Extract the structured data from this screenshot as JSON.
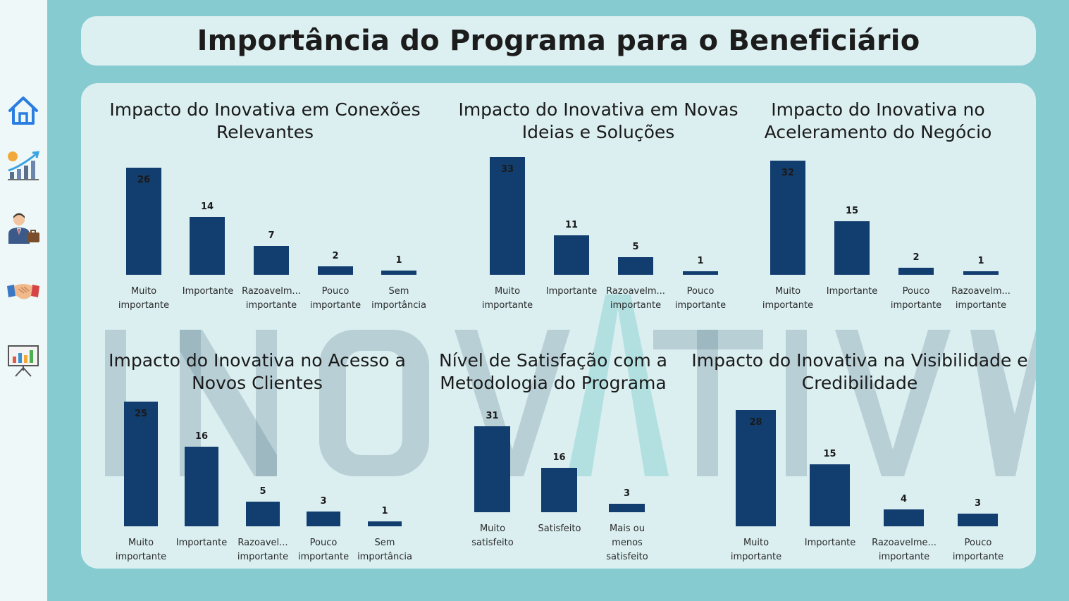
{
  "header": {
    "title": "Importância do Programa para o Beneficiário"
  },
  "sidebar": {
    "items": [
      {
        "icon": "home-icon"
      },
      {
        "icon": "growth-chart-icon"
      },
      {
        "icon": "businessman-icon"
      },
      {
        "icon": "handshake-icon"
      },
      {
        "icon": "presentation-board-icon"
      }
    ]
  },
  "watermark": {
    "text": "INOVATIVA"
  },
  "colors": {
    "bar": "#123d6f",
    "background": "#86cbd0",
    "panel": "#dbeff1"
  },
  "chart_data": [
    {
      "type": "bar",
      "title": "Impacto do Inovativa em Conexões\nRelevantes",
      "categories": [
        "Muito\nimportante",
        "Importante",
        "Razoavelm...\nimportante",
        "Pouco\nimportante",
        "Sem\nimportância"
      ],
      "values": [
        26,
        14,
        7,
        2,
        1
      ]
    },
    {
      "type": "bar",
      "title": "Impacto do Inovativa em Novas\nIdeias e Soluções",
      "categories": [
        "Muito\nimportante",
        "Importante",
        "Razoavelm...\nimportante",
        "Pouco\nimportante"
      ],
      "values": [
        33,
        11,
        5,
        1
      ]
    },
    {
      "type": "bar",
      "title": "Impacto do Inovativa no\nAceleramento do Negócio",
      "categories": [
        "Muito\nimportante",
        "Importante",
        "Pouco\nimportante",
        "Razoavelm...\nimportante"
      ],
      "values": [
        32,
        15,
        2,
        1
      ]
    },
    {
      "type": "bar",
      "title": "Impacto do Inovativa no Acesso a\nNovos Clientes",
      "categories": [
        "Muito\nimportante",
        "Importante",
        "Razoavel...\nimportante",
        "Pouco\nimportante",
        "Sem\nimportância"
      ],
      "values": [
        25,
        16,
        5,
        3,
        1
      ]
    },
    {
      "type": "bar",
      "title": "Nível de Satisfação com a\nMetodologia do Programa",
      "categories": [
        "Muito\nsatisfeito",
        "Satisfeito",
        "Mais ou\nmenos\nsatisfeito"
      ],
      "values": [
        31,
        16,
        3
      ]
    },
    {
      "type": "bar",
      "title": "Impacto do Inovativa na Visibilidade e\nCredibilidade",
      "categories": [
        "Muito\nimportante",
        "Importante",
        "Razoavelme...\nimportante",
        "Pouco\nimportante"
      ],
      "values": [
        28,
        15,
        4,
        3
      ]
    }
  ]
}
